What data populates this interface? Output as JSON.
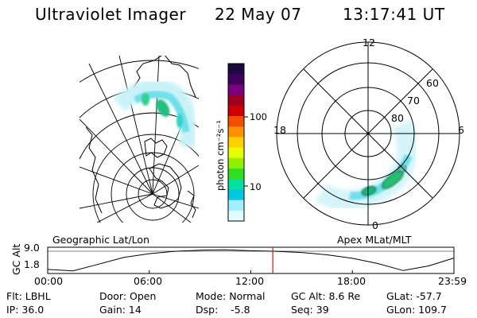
{
  "header": {
    "instrument": "Ultraviolet Imager",
    "date": "22 May 07",
    "time": "13:17:41 UT"
  },
  "colorbar": {
    "label": "photon cm⁻²s⁻¹",
    "ticks": [
      "100",
      "10"
    ],
    "colors": [
      "#1a0a40",
      "#400060",
      "#7a0080",
      "#a00020",
      "#d00000",
      "#f05000",
      "#ff9000",
      "#ffd000",
      "#e8ff00",
      "#90f000",
      "#30e020",
      "#00e0a0",
      "#00c8e0",
      "#a0f0ff",
      "#e0fcff"
    ]
  },
  "polar": {
    "mlt_labels": {
      "top": "12",
      "left": "18",
      "right": "6",
      "bottom": "0"
    },
    "lat_labels": [
      "60",
      "70",
      "80"
    ]
  },
  "timeline": {
    "left_title": "Geographic Lat/Lon",
    "right_title": "Apex MLat/MLT",
    "y_axis_label": "GC Alt",
    "y_ticks": [
      "9.0",
      "1.8"
    ],
    "x_ticks": [
      "00:00",
      "06:00",
      "12:00",
      "18:00",
      "23:59"
    ],
    "curve_hours": [
      0,
      1.5,
      3,
      4.5,
      6,
      7.5,
      9,
      10.5,
      12,
      13.5,
      15,
      16.5,
      18,
      19.5,
      21,
      22.5,
      23.99
    ],
    "curve_alt": [
      2.4,
      1.9,
      4.2,
      6.5,
      7.8,
      8.6,
      9.0,
      9.1,
      8.8,
      8.6,
      8.2,
      7.4,
      6.2,
      4.4,
      2.0,
      3.6,
      6.3
    ],
    "y_range": [
      1.0,
      10.0
    ],
    "current_hour": 13.3
  },
  "info": {
    "row1": {
      "filter": "Flt: LBHL",
      "door": "Door: Open",
      "mode": "Mode: Normal",
      "gc_alt": "GC Alt: 8.6 Re",
      "glat": "GLat: -57.7"
    },
    "row2": {
      "ip": "IP: 36.0",
      "gain": "Gain: 14",
      "dsp": "Dsp:    -5.8",
      "seq": "Seq: 39",
      "glon": "GLon: 109.7"
    }
  }
}
